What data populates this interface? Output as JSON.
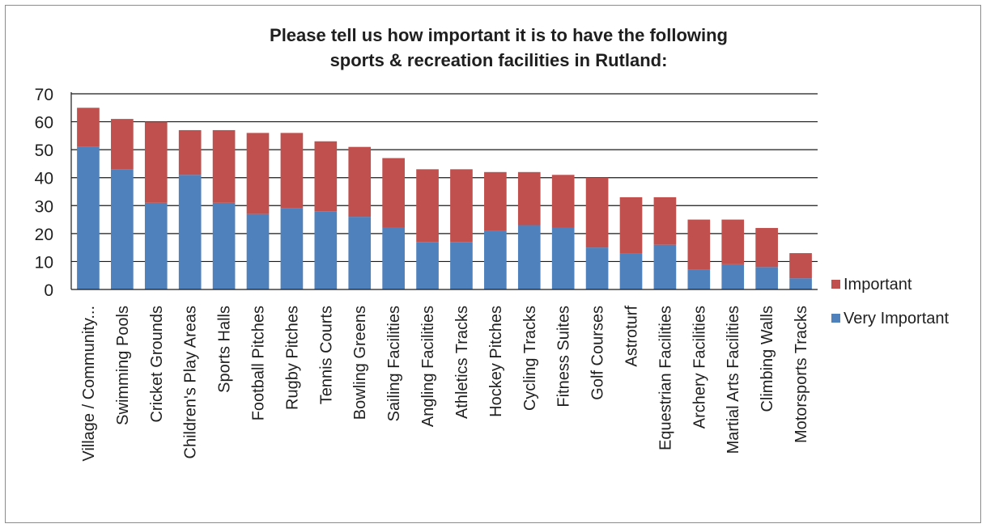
{
  "chart_data": {
    "type": "bar",
    "stacked": true,
    "title_lines": [
      "Please tell us how important it is to have the following",
      "sports & recreation facilities in Rutland:"
    ],
    "categories": [
      "Village / Community...",
      "Swimming Pools",
      "Cricket Grounds",
      "Children's Play Areas",
      "Sports Halls",
      "Football Pitches",
      "Rugby Pitches",
      "Tennis Courts",
      "Bowling Greens",
      "Sailing Facilities",
      "Angling Facilities",
      "Athletics Tracks",
      "Hockey Pitches",
      "Cycling Tracks",
      "Fitness Suites",
      "Golf Courses",
      "Astroturf",
      "Equestrian Facilities",
      "Archery Facilities",
      "Martial Arts Facilities",
      "Climbing Walls",
      "Motorsports Tracks"
    ],
    "series": [
      {
        "name": "Very Important",
        "color": "#4f81bd",
        "values": [
          51,
          43,
          31,
          41,
          31,
          27,
          29,
          28,
          26,
          22,
          17,
          17,
          21,
          23,
          22,
          15,
          13,
          16,
          7,
          9,
          8,
          4
        ]
      },
      {
        "name": "Important",
        "color": "#c0504d",
        "values": [
          14,
          18,
          29,
          16,
          26,
          29,
          27,
          25,
          25,
          25,
          26,
          26,
          21,
          19,
          19,
          25,
          20,
          17,
          18,
          16,
          14,
          9
        ]
      }
    ],
    "ylim": [
      0,
      70
    ],
    "yticks": [
      0,
      10,
      20,
      30,
      40,
      50,
      60,
      70
    ],
    "grid": true,
    "legend_position": "right"
  }
}
